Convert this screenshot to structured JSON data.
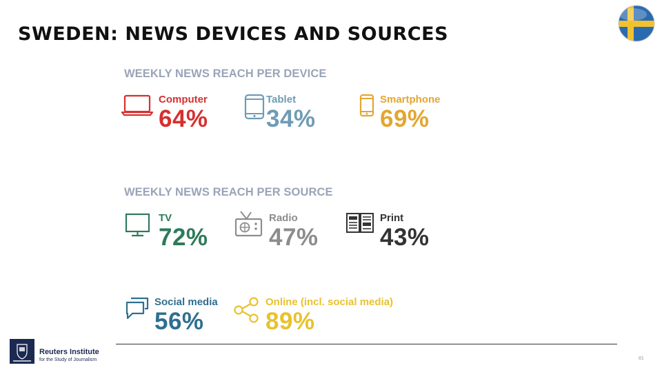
{
  "page": {
    "title": "SWEDEN: NEWS DEVICES AND SOURCES",
    "page_number": "81"
  },
  "devices": {
    "heading": "WEEKLY NEWS REACH PER DEVICE",
    "items": [
      {
        "label": "Computer",
        "value": "64%",
        "color": "#d62f2f",
        "icon": "laptop-icon"
      },
      {
        "label": "Tablet",
        "value": "34%",
        "color": "#6f9bb5",
        "icon": "tablet-icon"
      },
      {
        "label": "Smartphone",
        "value": "69%",
        "color": "#e3a630",
        "icon": "smartphone-icon"
      }
    ]
  },
  "sources": {
    "heading": "WEEKLY NEWS REACH PER SOURCE",
    "items": [
      {
        "label": "TV",
        "value": "72%",
        "color": "#2f7a5a",
        "icon": "tv-icon"
      },
      {
        "label": "Radio",
        "value": "47%",
        "color": "#8c8c8c",
        "icon": "radio-icon"
      },
      {
        "label": "Print",
        "value": "43%",
        "color": "#333333",
        "icon": "newspaper-icon"
      },
      {
        "label": "Social media",
        "value": "56%",
        "color": "#2f6f8f",
        "icon": "chat-bubbles-icon"
      },
      {
        "label": "Online (incl. social media)",
        "value": "89%",
        "color": "#e8c22e",
        "icon": "share-icon"
      }
    ]
  },
  "footer": {
    "logo_title": "Reuters Institute",
    "logo_subtitle": "for the Study of Journalism"
  }
}
